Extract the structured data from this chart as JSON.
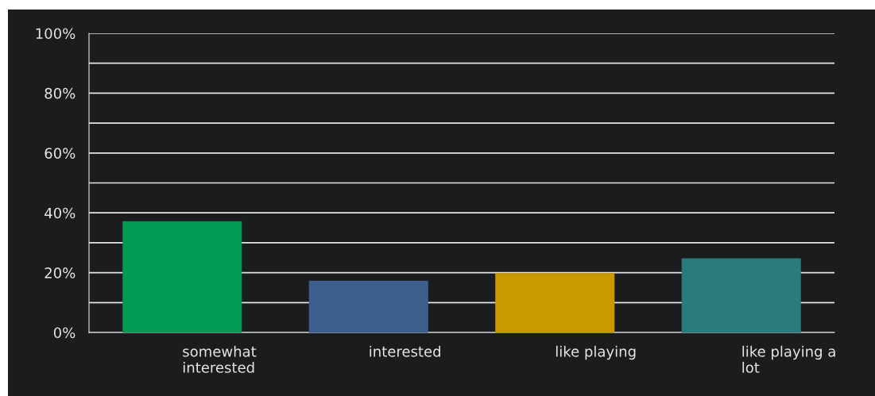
{
  "chart_data": {
    "type": "bar",
    "categories": [
      "somewhat\ninterested",
      "interested",
      "like playing",
      "like playing a\nlot"
    ],
    "values": [
      37.2,
      17.3,
      19.8,
      24.8
    ],
    "colors": [
      "#009a55",
      "#3d5f8e",
      "#c89a00",
      "#2b7a7d"
    ],
    "ylim": [
      0,
      100
    ],
    "yticks": [
      {
        "value": 0,
        "label": "0%"
      },
      {
        "value": 10,
        "label": null
      },
      {
        "value": 20,
        "label": "20%"
      },
      {
        "value": 30,
        "label": null
      },
      {
        "value": 40,
        "label": "40%"
      },
      {
        "value": 50,
        "label": null
      },
      {
        "value": 60,
        "label": "60%"
      },
      {
        "value": 70,
        "label": null
      },
      {
        "value": 80,
        "label": "80%"
      },
      {
        "value": 90,
        "label": null
      },
      {
        "value": 100,
        "label": "100%"
      }
    ],
    "grid": "y"
  }
}
